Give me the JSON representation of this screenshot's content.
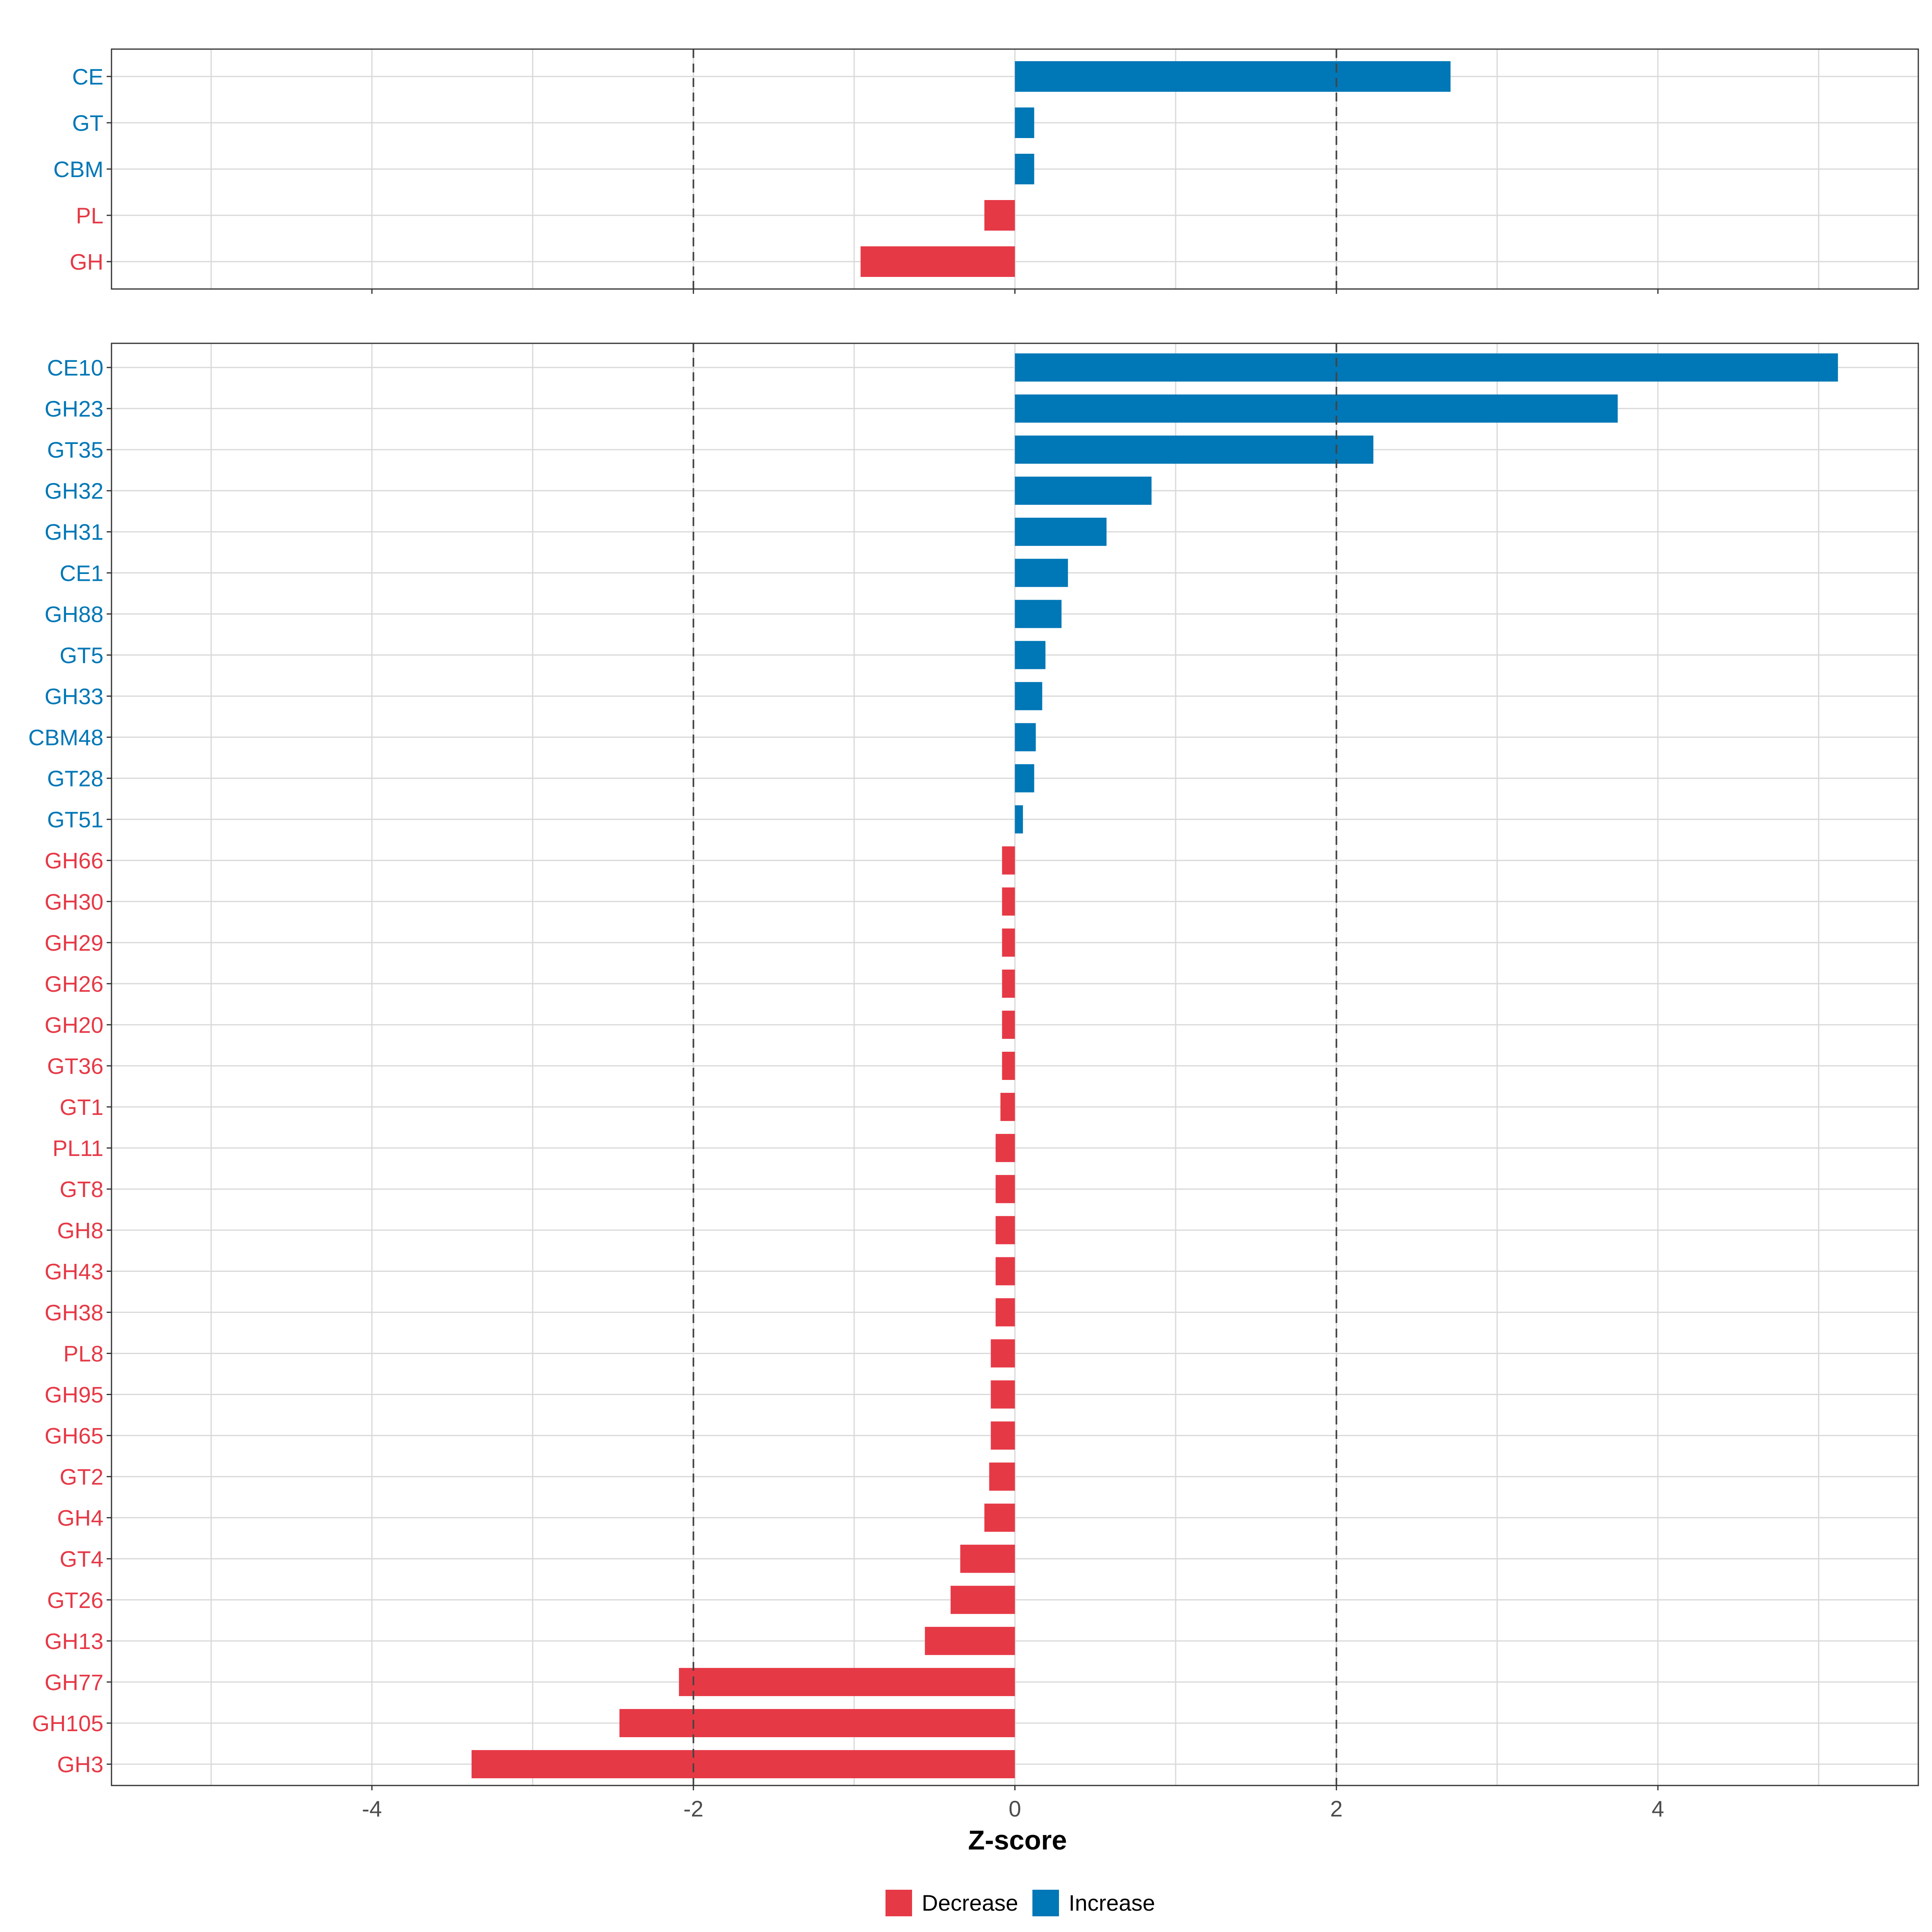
{
  "colors": {
    "increase": "#0077b6",
    "decrease": "#e63946"
  },
  "chart_data": [
    {
      "type": "bar",
      "orientation": "horizontal",
      "panel": "top",
      "categories": [
        "CE",
        "GT",
        "CBM",
        "PL",
        "GH"
      ],
      "values": [
        2.71,
        0.12,
        0.12,
        -0.19,
        -0.96
      ],
      "groups": [
        "Increase",
        "Increase",
        "Increase",
        "Decrease",
        "Decrease"
      ],
      "xlim": [
        -5.62,
        5.62
      ],
      "xticks": [
        -4,
        -2,
        0,
        2,
        4
      ],
      "reference_lines": [
        -2,
        2
      ],
      "grid": true
    },
    {
      "type": "bar",
      "orientation": "horizontal",
      "panel": "bottom",
      "categories": [
        "CE10",
        "GH23",
        "GT35",
        "GH32",
        "GH31",
        "CE1",
        "GH88",
        "GT5",
        "GH33",
        "CBM48",
        "GT28",
        "GT51",
        "GH66",
        "GH30",
        "GH29",
        "GH26",
        "GH20",
        "GT36",
        "GT1",
        "PL11",
        "GT8",
        "GH8",
        "GH43",
        "GH38",
        "PL8",
        "GH95",
        "GH65",
        "GT2",
        "GH4",
        "GT4",
        "GT26",
        "GH13",
        "GH77",
        "GH105",
        "GH3"
      ],
      "values": [
        5.12,
        3.75,
        2.23,
        0.85,
        0.57,
        0.33,
        0.29,
        0.19,
        0.17,
        0.13,
        0.12,
        0.05,
        -0.08,
        -0.08,
        -0.08,
        -0.08,
        -0.08,
        -0.08,
        -0.09,
        -0.12,
        -0.12,
        -0.12,
        -0.12,
        -0.12,
        -0.15,
        -0.15,
        -0.15,
        -0.16,
        -0.19,
        -0.34,
        -0.4,
        -0.56,
        -2.09,
        -2.46,
        -3.38
      ],
      "groups": [
        "Increase",
        "Increase",
        "Increase",
        "Increase",
        "Increase",
        "Increase",
        "Increase",
        "Increase",
        "Increase",
        "Increase",
        "Increase",
        "Increase",
        "Decrease",
        "Decrease",
        "Decrease",
        "Decrease",
        "Decrease",
        "Decrease",
        "Decrease",
        "Decrease",
        "Decrease",
        "Decrease",
        "Decrease",
        "Decrease",
        "Decrease",
        "Decrease",
        "Decrease",
        "Decrease",
        "Decrease",
        "Decrease",
        "Decrease",
        "Decrease",
        "Decrease",
        "Decrease",
        "Decrease"
      ],
      "xlim": [
        -5.62,
        5.62
      ],
      "xticks": [
        -4,
        -2,
        0,
        2,
        4
      ],
      "xlabel": "Z-score",
      "reference_lines": [
        -2,
        2
      ],
      "grid": true
    }
  ],
  "x_tick_labels": [
    "-4",
    "-2",
    "0",
    "2",
    "4"
  ],
  "xlabel": "Z-score",
  "legend": {
    "position": "bottom",
    "items": [
      {
        "label": "Decrease",
        "color": "#e63946"
      },
      {
        "label": "Increase",
        "color": "#0077b6"
      }
    ]
  }
}
